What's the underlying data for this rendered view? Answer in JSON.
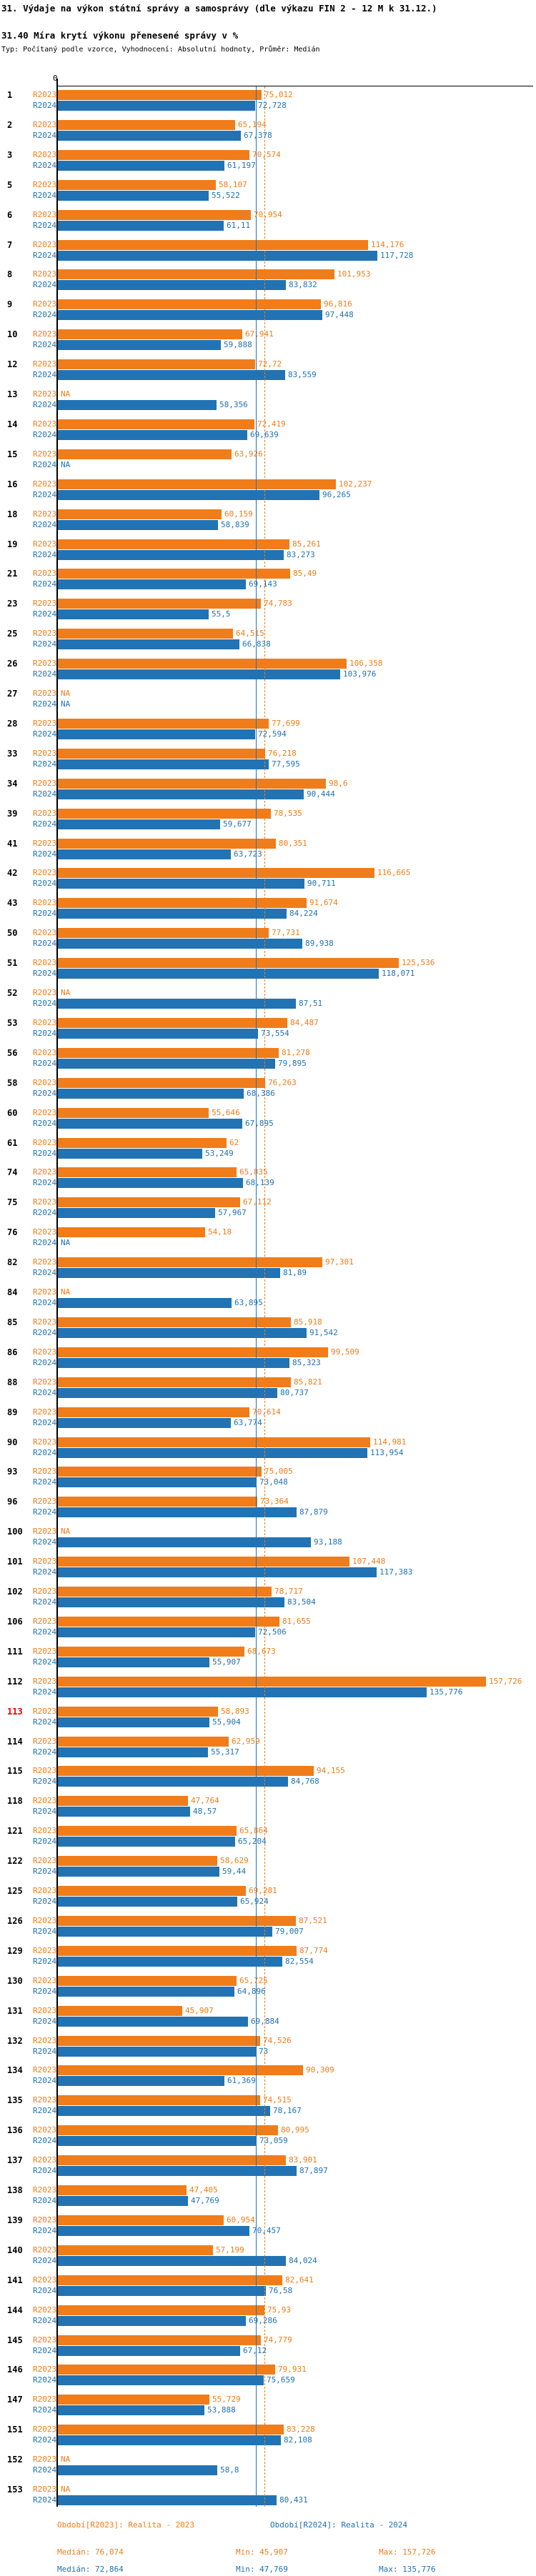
{
  "colors": {
    "r2023": "#f07d1a",
    "r2024": "#2173b4",
    "flagged_row": "#e80000",
    "axis": "#000000"
  },
  "chart_data": {
    "type": "bar",
    "orientation": "horizontal",
    "title": "31. Výdaje na výkon státní správy a samosprávy (dle výkazu FIN 2 - 12 M k 31.12.)",
    "subtitle": "31.40 Míra krytí výkonu přenesené správy v %",
    "meta_line": "Typ: Počítaný podle vzorce, Vyhodnocení: Absolutní hodnoty, Průměr: Medián",
    "value_unit": "%",
    "grid": false,
    "legend_position": "bottom",
    "axis": {
      "zero_label": "0",
      "x_min": 0,
      "x_max": 175
    },
    "series_names": [
      "R2023",
      "R2024"
    ],
    "missing_label": "NA",
    "flagged_ids": [
      "113"
    ],
    "reference_lines": [
      {
        "series": "R2023",
        "label": "Medián",
        "value": 76.074,
        "style": "dashed"
      },
      {
        "series": "R2024",
        "label": "Medián",
        "value": 72.864,
        "style": "solid"
      }
    ],
    "legend": {
      "r2023": "Období[R2023]: Realita - 2023",
      "r2024": "Období[R2024]: Realita - 2024"
    },
    "stats": {
      "r2023": {
        "median": "Medián: 76,074",
        "min": "Min: 45,907",
        "max": "Max: 157,726"
      },
      "r2024": {
        "median": "Medián: 72,864",
        "min": "Min: 47,769",
        "max": "Max: 135,776"
      }
    },
    "rows": [
      {
        "id": "1",
        "r2023": 75.012,
        "r2024": 72.728
      },
      {
        "id": "2",
        "r2023": 65.194,
        "r2024": 67.378
      },
      {
        "id": "3",
        "r2023": 70.574,
        "r2024": 61.197
      },
      {
        "id": "5",
        "r2023": 58.107,
        "r2024": 55.522
      },
      {
        "id": "6",
        "r2023": 70.954,
        "r2024": 61.11
      },
      {
        "id": "7",
        "r2023": 114.176,
        "r2024": 117.728
      },
      {
        "id": "8",
        "r2023": 101.953,
        "r2024": 83.832
      },
      {
        "id": "9",
        "r2023": 96.816,
        "r2024": 97.448
      },
      {
        "id": "10",
        "r2023": 67.941,
        "r2024": 59.888
      },
      {
        "id": "12",
        "r2023": 72.72,
        "r2024": 83.559
      },
      {
        "id": "13",
        "r2023": null,
        "r2024": 58.356
      },
      {
        "id": "14",
        "r2023": 72.419,
        "r2024": 69.639
      },
      {
        "id": "15",
        "r2023": 63.926,
        "r2024": null
      },
      {
        "id": "16",
        "r2023": 102.237,
        "r2024": 96.265
      },
      {
        "id": "18",
        "r2023": 60.159,
        "r2024": 58.839
      },
      {
        "id": "19",
        "r2023": 85.261,
        "r2024": 83.273
      },
      {
        "id": "21",
        "r2023": 85.49,
        "r2024": 69.143
      },
      {
        "id": "23",
        "r2023": 74.783,
        "r2024": 55.5
      },
      {
        "id": "25",
        "r2023": 64.515,
        "r2024": 66.838
      },
      {
        "id": "26",
        "r2023": 106.358,
        "r2024": 103.976
      },
      {
        "id": "27",
        "r2023": null,
        "r2024": null
      },
      {
        "id": "28",
        "r2023": 77.699,
        "r2024": 72.594
      },
      {
        "id": "33",
        "r2023": 76.218,
        "r2024": 77.595
      },
      {
        "id": "34",
        "r2023": 98.6,
        "r2024": 90.444
      },
      {
        "id": "39",
        "r2023": 78.535,
        "r2024": 59.677
      },
      {
        "id": "41",
        "r2023": 80.351,
        "r2024": 63.723
      },
      {
        "id": "42",
        "r2023": 116.665,
        "r2024": 90.711
      },
      {
        "id": "43",
        "r2023": 91.674,
        "r2024": 84.224
      },
      {
        "id": "50",
        "r2023": 77.731,
        "r2024": 89.938
      },
      {
        "id": "51",
        "r2023": 125.536,
        "r2024": 118.071
      },
      {
        "id": "52",
        "r2023": null,
        "r2024": 87.51
      },
      {
        "id": "53",
        "r2023": 84.487,
        "r2024": 73.554
      },
      {
        "id": "56",
        "r2023": 81.278,
        "r2024": 79.895
      },
      {
        "id": "58",
        "r2023": 76.263,
        "r2024": 68.386
      },
      {
        "id": "60",
        "r2023": 55.646,
        "r2024": 67.895
      },
      {
        "id": "61",
        "r2023": 62,
        "r2024": 53.249
      },
      {
        "id": "74",
        "r2023": 65.835,
        "r2024": 68.139
      },
      {
        "id": "75",
        "r2023": 67.112,
        "r2024": 57.967
      },
      {
        "id": "76",
        "r2023": 54.18,
        "r2024": null
      },
      {
        "id": "82",
        "r2023": 97.301,
        "r2024": 81.89
      },
      {
        "id": "84",
        "r2023": null,
        "r2024": 63.895
      },
      {
        "id": "85",
        "r2023": 85.918,
        "r2024": 91.542
      },
      {
        "id": "86",
        "r2023": 99.509,
        "r2024": 85.323
      },
      {
        "id": "88",
        "r2023": 85.821,
        "r2024": 80.737
      },
      {
        "id": "89",
        "r2023": 70.614,
        "r2024": 63.774
      },
      {
        "id": "90",
        "r2023": 114.981,
        "r2024": 113.954
      },
      {
        "id": "93",
        "r2023": 75.005,
        "r2024": 73.048
      },
      {
        "id": "96",
        "r2023": 73.364,
        "r2024": 87.879
      },
      {
        "id": "100",
        "r2023": null,
        "r2024": 93.188
      },
      {
        "id": "101",
        "r2023": 107.448,
        "r2024": 117.383
      },
      {
        "id": "102",
        "r2023": 78.717,
        "r2024": 83.504
      },
      {
        "id": "106",
        "r2023": 81.655,
        "r2024": 72.506
      },
      {
        "id": "111",
        "r2023": 68.673,
        "r2024": 55.907
      },
      {
        "id": "112",
        "r2023": 157.726,
        "r2024": 135.776
      },
      {
        "id": "113",
        "r2023": 58.893,
        "r2024": 55.904
      },
      {
        "id": "114",
        "r2023": 62.959,
        "r2024": 55.317
      },
      {
        "id": "115",
        "r2023": 94.155,
        "r2024": 84.768
      },
      {
        "id": "118",
        "r2023": 47.764,
        "r2024": 48.57
      },
      {
        "id": "121",
        "r2023": 65.864,
        "r2024": 65.204
      },
      {
        "id": "122",
        "r2023": 58.629,
        "r2024": 59.44
      },
      {
        "id": "125",
        "r2023": 69.281,
        "r2024": 65.924
      },
      {
        "id": "126",
        "r2023": 87.521,
        "r2024": 79.007
      },
      {
        "id": "129",
        "r2023": 87.774,
        "r2024": 82.554
      },
      {
        "id": "130",
        "r2023": 65.725,
        "r2024": 64.896
      },
      {
        "id": "131",
        "r2023": 45.907,
        "r2024": 69.884
      },
      {
        "id": "132",
        "r2023": 74.526,
        "r2024": 73
      },
      {
        "id": "134",
        "r2023": 90.309,
        "r2024": 61.369
      },
      {
        "id": "135",
        "r2023": 74.515,
        "r2024": 78.167
      },
      {
        "id": "136",
        "r2023": 80.995,
        "r2024": 73.059
      },
      {
        "id": "137",
        "r2023": 83.901,
        "r2024": 87.897
      },
      {
        "id": "138",
        "r2023": 47.405,
        "r2024": 47.769
      },
      {
        "id": "139",
        "r2023": 60.954,
        "r2024": 70.457
      },
      {
        "id": "140",
        "r2023": 57.199,
        "r2024": 84.024
      },
      {
        "id": "141",
        "r2023": 82.641,
        "r2024": 76.58
      },
      {
        "id": "144",
        "r2023": 75.93,
        "r2024": 69.286
      },
      {
        "id": "145",
        "r2023": 74.779,
        "r2024": 67.12
      },
      {
        "id": "146",
        "r2023": 79.931,
        "r2024": 75.659
      },
      {
        "id": "147",
        "r2023": 55.729,
        "r2024": 53.888
      },
      {
        "id": "151",
        "r2023": 83.228,
        "r2024": 82.108
      },
      {
        "id": "152",
        "r2023": null,
        "r2024": 58.8
      },
      {
        "id": "153",
        "r2023": null,
        "r2024": 80.431
      }
    ]
  }
}
